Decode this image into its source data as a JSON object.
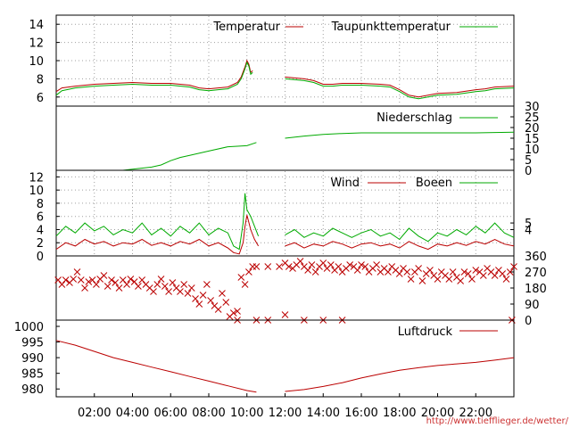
{
  "source_url": "http://www.tiefflieger.de/wetter/",
  "colors": {
    "red": "#bb0000",
    "green": "#00aa00",
    "frame": "#000000",
    "grid": "#a0a0a0"
  },
  "x_axis": {
    "unit": "hours",
    "range": [
      0,
      24
    ],
    "tick_values": [
      2,
      4,
      6,
      8,
      10,
      12,
      14,
      16,
      18,
      20,
      22
    ],
    "tick_labels": [
      "02:00",
      "04:00",
      "06:00",
      "08:00",
      "10:00",
      "12:00",
      "14:00",
      "16:00",
      "18:00",
      "20:00",
      "22:00"
    ]
  },
  "chart_data": [
    {
      "type": "line",
      "panel": "temperature",
      "ylim": [
        5,
        15
      ],
      "y_ticks": [
        6,
        8,
        10,
        12,
        14
      ],
      "y_tick_labels": [
        "6",
        "8",
        "10",
        "12",
        "14"
      ],
      "legend_position": "top-right",
      "x": [
        0,
        0.3,
        1,
        2,
        3,
        4,
        5,
        6,
        7,
        7.5,
        8,
        8.5,
        9,
        9.5,
        9.7,
        9.9,
        10.0,
        10.1,
        10.2,
        10.3,
        10.5,
        11.7,
        12,
        12.5,
        13,
        13.5,
        14,
        14.5,
        15,
        16,
        17,
        17.5,
        18,
        18.5,
        19,
        20,
        21,
        22,
        22.5,
        23,
        24
      ],
      "series": [
        {
          "name": "Temperatur",
          "color": "#bb0000",
          "values": [
            6.6,
            7.0,
            7.2,
            7.4,
            7.5,
            7.6,
            7.5,
            7.5,
            7.3,
            7.0,
            6.9,
            7.0,
            7.1,
            7.6,
            8.2,
            9.3,
            10.0,
            9.6,
            8.7,
            8.9,
            null,
            null,
            8.2,
            8.1,
            8.0,
            7.8,
            7.4,
            7.4,
            7.5,
            7.5,
            7.4,
            7.3,
            6.8,
            6.2,
            6.0,
            6.4,
            6.5,
            6.8,
            6.9,
            7.1,
            7.2
          ]
        },
        {
          "name": "Taupunkttemperatur",
          "color": "#00aa00",
          "values": [
            6.2,
            6.7,
            7.0,
            7.2,
            7.3,
            7.4,
            7.3,
            7.3,
            7.1,
            6.8,
            6.7,
            6.8,
            6.9,
            7.4,
            8.0,
            9.1,
            9.8,
            9.4,
            8.5,
            8.7,
            null,
            null,
            8.0,
            7.9,
            7.8,
            7.6,
            7.2,
            7.2,
            7.3,
            7.3,
            7.2,
            7.1,
            6.6,
            6.0,
            5.8,
            6.2,
            6.3,
            6.6,
            6.7,
            6.9,
            7.0
          ]
        }
      ]
    },
    {
      "type": "line",
      "panel": "precipitation",
      "ylim": [
        0,
        30
      ],
      "y_ticks": [
        0,
        5,
        10,
        15,
        20,
        25,
        30
      ],
      "y_tick_labels": [
        "0",
        "5",
        "10",
        "15",
        "20",
        "25",
        "30"
      ],
      "y_axis_side": "right",
      "legend_position": "top-right",
      "x": [
        0,
        3.5,
        4,
        5,
        5.5,
        6,
        6.5,
        7,
        8,
        9,
        10,
        10.5,
        10.6,
        11.7,
        12,
        13,
        14,
        15,
        16,
        18,
        20,
        22,
        24
      ],
      "series": [
        {
          "name": "Niederschlag",
          "color": "#00aa00",
          "values": [
            0,
            0,
            0.5,
            1.5,
            2.5,
            4.5,
            6,
            7,
            9,
            11,
            11.5,
            13,
            null,
            null,
            15,
            16,
            16.8,
            17.2,
            17.5,
            17.5,
            17.5,
            17.5,
            17.8
          ]
        }
      ]
    },
    {
      "type": "line",
      "panel": "wind",
      "ylim": [
        0,
        13
      ],
      "y_ticks": [
        0,
        2,
        4,
        6,
        8,
        10,
        12
      ],
      "y_tick_labels": [
        "0",
        "2",
        "4",
        "6",
        "8",
        "10",
        "12"
      ],
      "y_right_ticks": [
        4,
        5
      ],
      "y_right_tick_labels": [
        "4",
        "5"
      ],
      "legend_position": "top-right",
      "x": [
        0,
        0.5,
        1,
        1.5,
        2,
        2.5,
        3,
        3.5,
        4,
        4.5,
        5,
        5.5,
        6,
        6.5,
        7,
        7.5,
        8,
        8.5,
        9,
        9.3,
        9.6,
        9.8,
        9.9,
        10.0,
        10.2,
        10.4,
        10.6,
        11.7,
        12,
        12.5,
        13,
        13.5,
        14,
        14.5,
        15,
        15.5,
        16,
        16.5,
        17,
        17.5,
        18,
        18.5,
        19,
        19.5,
        20,
        20.5,
        21,
        21.5,
        22,
        22.5,
        23,
        23.5,
        24
      ],
      "series": [
        {
          "name": "Wind",
          "color": "#bb0000",
          "values": [
            1.0,
            2.0,
            1.5,
            2.5,
            1.8,
            2.2,
            1.5,
            2.0,
            1.8,
            2.5,
            1.6,
            2.0,
            1.5,
            2.2,
            1.8,
            2.5,
            1.5,
            2.0,
            1.2,
            0.5,
            0.3,
            2.0,
            4.5,
            6.2,
            4.0,
            2.5,
            1.5,
            null,
            1.5,
            2.0,
            1.2,
            1.8,
            1.5,
            2.2,
            1.8,
            1.2,
            1.8,
            2.0,
            1.5,
            1.8,
            1.2,
            2.2,
            1.5,
            1.0,
            1.8,
            1.5,
            2.0,
            1.6,
            2.2,
            1.8,
            2.5,
            1.8,
            1.5
          ]
        },
        {
          "name": "Boeen",
          "color": "#00aa00",
          "values": [
            3.0,
            4.5,
            3.5,
            5.0,
            3.8,
            4.5,
            3.2,
            4.0,
            3.5,
            5.0,
            3.2,
            4.2,
            3.0,
            4.5,
            3.5,
            5.0,
            3.2,
            4.2,
            3.5,
            1.5,
            1.0,
            5.0,
            9.5,
            7.0,
            6.0,
            4.5,
            3.0,
            null,
            3.2,
            4.0,
            2.8,
            3.5,
            3.0,
            4.2,
            3.5,
            2.8,
            3.5,
            4.0,
            3.0,
            3.5,
            2.5,
            4.2,
            3.0,
            2.2,
            3.5,
            3.0,
            4.0,
            3.2,
            4.5,
            3.5,
            5.0,
            3.5,
            2.8
          ]
        }
      ]
    },
    {
      "type": "scatter",
      "panel": "wind-direction",
      "ylim": [
        0,
        360
      ],
      "y_ticks": [
        0,
        90,
        180,
        270,
        360
      ],
      "y_tick_labels": [
        "0",
        "90",
        "180",
        "270",
        "360"
      ],
      "y_axis_side": "right",
      "marker": "x",
      "color": "#bb0000",
      "x": [
        0.1,
        0.3,
        0.5,
        0.7,
        0.9,
        1.1,
        1.3,
        1.5,
        1.7,
        1.9,
        2.1,
        2.3,
        2.5,
        2.7,
        2.9,
        3.1,
        3.3,
        3.5,
        3.7,
        3.9,
        4.1,
        4.3,
        4.5,
        4.7,
        4.9,
        5.1,
        5.3,
        5.5,
        5.7,
        5.9,
        6.1,
        6.3,
        6.5,
        6.7,
        6.9,
        7.1,
        7.3,
        7.5,
        7.7,
        7.9,
        8.1,
        8.3,
        8.5,
        8.7,
        8.9,
        9.1,
        9.3,
        9.5,
        9.7,
        9.9,
        10.1,
        10.3,
        10.5,
        11.1,
        11.7,
        12.0,
        12.2,
        12.4,
        12.6,
        12.8,
        13.0,
        13.2,
        13.4,
        13.6,
        13.8,
        14.0,
        14.2,
        14.4,
        14.6,
        14.8,
        15.0,
        15.2,
        15.4,
        15.6,
        15.8,
        16.0,
        16.2,
        16.4,
        16.6,
        16.8,
        17.0,
        17.2,
        17.4,
        17.6,
        17.8,
        18.0,
        18.2,
        18.4,
        18.6,
        18.8,
        19.0,
        19.2,
        19.4,
        19.6,
        19.8,
        20.0,
        20.2,
        20.4,
        20.6,
        20.8,
        21.0,
        21.2,
        21.4,
        21.6,
        21.8,
        22.0,
        22.2,
        22.4,
        22.6,
        22.8,
        23.0,
        23.2,
        23.4,
        23.6,
        23.8,
        24.0,
        9.5,
        10.5,
        11.1,
        12.0,
        13.0,
        14.0,
        15.0,
        23.9
      ],
      "values": [
        225,
        200,
        225,
        210,
        230,
        270,
        225,
        180,
        215,
        225,
        200,
        230,
        250,
        190,
        225,
        210,
        180,
        225,
        200,
        230,
        215,
        190,
        225,
        200,
        180,
        160,
        200,
        230,
        190,
        160,
        210,
        180,
        160,
        200,
        150,
        180,
        120,
        90,
        140,
        200,
        110,
        80,
        60,
        150,
        100,
        20,
        40,
        50,
        240,
        200,
        270,
        300,
        300,
        300,
        300,
        320,
        300,
        290,
        310,
        330,
        300,
        280,
        310,
        270,
        300,
        320,
        290,
        310,
        280,
        300,
        270,
        290,
        310,
        300,
        280,
        310,
        300,
        270,
        290,
        310,
        270,
        290,
        270,
        300,
        280,
        260,
        290,
        270,
        230,
        270,
        290,
        220,
        260,
        280,
        250,
        230,
        270,
        250,
        230,
        270,
        240,
        220,
        270,
        260,
        230,
        280,
        270,
        250,
        290,
        270,
        250,
        280,
        260,
        230,
        270,
        300,
        0,
        0,
        0,
        30,
        0,
        0,
        0,
        0
      ]
    },
    {
      "type": "line",
      "panel": "pressure",
      "ylim": [
        977.5,
        1002
      ],
      "y_ticks": [
        980,
        985,
        990,
        995,
        1000
      ],
      "y_tick_labels": [
        "980",
        "985",
        "990",
        "995",
        "1000"
      ],
      "legend_position": "top-right",
      "x": [
        0,
        1,
        2,
        3,
        4,
        5,
        6,
        7,
        8,
        9,
        10,
        10.5,
        11.7,
        12,
        13,
        14,
        15,
        16,
        17,
        18,
        19,
        20,
        21,
        22,
        23,
        24
      ],
      "series": [
        {
          "name": "Luftdruck",
          "color": "#bb0000",
          "values": [
            995.5,
            994.0,
            992.0,
            990.0,
            988.5,
            987.0,
            985.5,
            984.0,
            982.5,
            981.0,
            979.5,
            979.0,
            null,
            979.2,
            979.8,
            980.8,
            982.0,
            983.5,
            984.8,
            986.0,
            986.8,
            987.5,
            988.0,
            988.5,
            989.2,
            990.0
          ]
        }
      ]
    }
  ]
}
